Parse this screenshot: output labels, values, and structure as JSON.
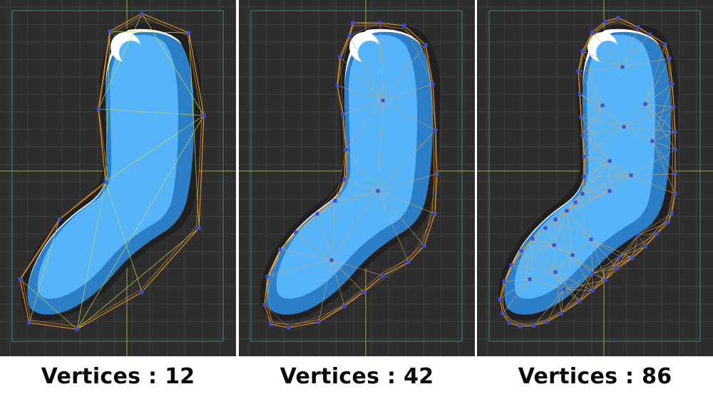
{
  "colors": {
    "background": "#2d2d2d",
    "grid": "#3e3e3e",
    "frame": "#2f8a86",
    "axis": "#a7a82f",
    "outline": "#e8922c",
    "inner_edge": "#d9a560",
    "vertex": "#3a4fd8",
    "sock_light": "#56b4f8",
    "sock_dark": "#2c7fc6",
    "sock_highlight": "#ffffff",
    "shadow": "#202020"
  },
  "panels": [
    {
      "id": "panel-12",
      "caption": "Vertices : 12",
      "vertex_count": 12
    },
    {
      "id": "panel-42",
      "caption": "Vertices : 42",
      "vertex_count": 42
    },
    {
      "id": "panel-86",
      "caption": "Vertices : 86",
      "vertex_count": 86
    }
  ]
}
